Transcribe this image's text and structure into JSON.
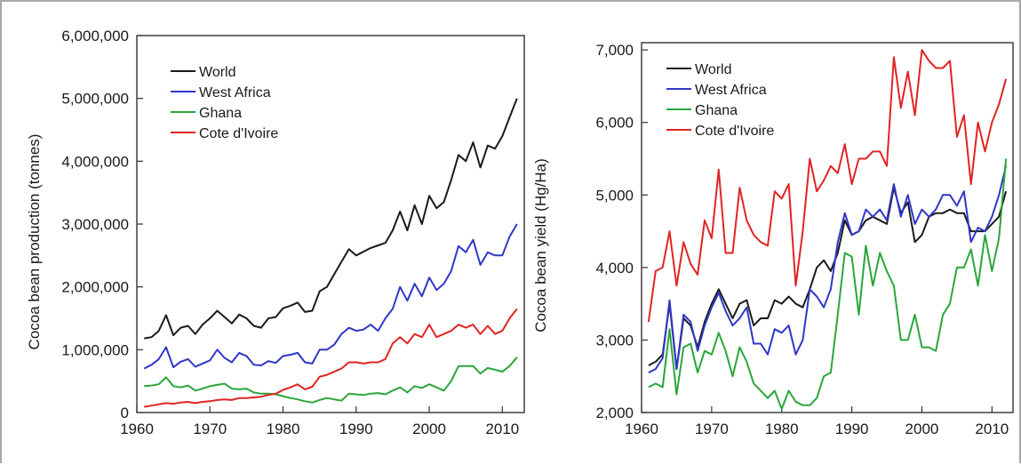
{
  "chart_data": [
    {
      "type": "line",
      "ylabel": "Cocoa bean production (tonnes)",
      "xlabel": "",
      "xlim": [
        1960,
        2013
      ],
      "ylim": [
        0,
        6000000
      ],
      "x_ticks": [
        1960,
        1970,
        1980,
        1990,
        2000,
        2010
      ],
      "x_tick_labels": [
        "1960",
        "1970",
        "1980",
        "1990",
        "2000",
        "2010"
      ],
      "y_ticks": [
        0,
        1000000,
        2000000,
        3000000,
        4000000,
        5000000,
        6000000
      ],
      "y_tick_labels": [
        "0",
        "1,000,000",
        "2,000,000",
        "3,000,000",
        "4,000,000",
        "5,000,000",
        "6,000,000"
      ],
      "legend_position": "top-left",
      "grid": false,
      "x": [
        1961,
        1962,
        1963,
        1964,
        1965,
        1966,
        1967,
        1968,
        1969,
        1970,
        1971,
        1972,
        1973,
        1974,
        1975,
        1976,
        1977,
        1978,
        1979,
        1980,
        1981,
        1982,
        1983,
        1984,
        1985,
        1986,
        1987,
        1988,
        1989,
        1990,
        1991,
        1992,
        1993,
        1994,
        1995,
        1996,
        1997,
        1998,
        1999,
        2000,
        2001,
        2002,
        2003,
        2004,
        2005,
        2006,
        2007,
        2008,
        2009,
        2010,
        2011,
        2012
      ],
      "series": [
        {
          "name": "World",
          "color": "#1a1a1a",
          "values": [
            1180000,
            1200000,
            1300000,
            1550000,
            1230000,
            1350000,
            1380000,
            1250000,
            1400000,
            1500000,
            1620000,
            1520000,
            1420000,
            1560000,
            1500000,
            1380000,
            1350000,
            1500000,
            1520000,
            1660000,
            1700000,
            1750000,
            1600000,
            1620000,
            1930000,
            2000000,
            2200000,
            2400000,
            2600000,
            2500000,
            2560000,
            2620000,
            2660000,
            2700000,
            2900000,
            3200000,
            2900000,
            3300000,
            3000000,
            3450000,
            3250000,
            3350000,
            3700000,
            4100000,
            4000000,
            4300000,
            3900000,
            4250000,
            4200000,
            4400000,
            4700000,
            5000000
          ]
        },
        {
          "name": "West Africa",
          "color": "#2f37c8",
          "values": [
            700000,
            760000,
            850000,
            1040000,
            720000,
            810000,
            850000,
            730000,
            780000,
            830000,
            1000000,
            870000,
            800000,
            950000,
            900000,
            760000,
            750000,
            820000,
            790000,
            900000,
            920000,
            950000,
            800000,
            780000,
            1000000,
            1000000,
            1080000,
            1250000,
            1350000,
            1300000,
            1320000,
            1400000,
            1300000,
            1500000,
            1650000,
            2000000,
            1780000,
            2050000,
            1850000,
            2150000,
            1950000,
            2050000,
            2250000,
            2650000,
            2550000,
            2750000,
            2350000,
            2550000,
            2500000,
            2500000,
            2800000,
            3000000
          ]
        },
        {
          "name": "Ghana",
          "color": "#2aa63a",
          "values": [
            420000,
            430000,
            450000,
            560000,
            420000,
            400000,
            430000,
            350000,
            380000,
            420000,
            440000,
            460000,
            380000,
            370000,
            380000,
            320000,
            300000,
            300000,
            290000,
            260000,
            230000,
            210000,
            180000,
            160000,
            200000,
            230000,
            210000,
            190000,
            300000,
            290000,
            280000,
            300000,
            310000,
            290000,
            350000,
            400000,
            320000,
            420000,
            390000,
            450000,
            400000,
            350000,
            500000,
            740000,
            740000,
            740000,
            620000,
            710000,
            680000,
            650000,
            740000,
            880000
          ]
        },
        {
          "name": "Cote d'Ivoire",
          "color": "#e02424",
          "values": [
            90000,
            110000,
            130000,
            150000,
            140000,
            160000,
            170000,
            150000,
            170000,
            180000,
            200000,
            210000,
            200000,
            230000,
            230000,
            240000,
            250000,
            280000,
            300000,
            360000,
            400000,
            450000,
            370000,
            410000,
            570000,
            600000,
            650000,
            700000,
            800000,
            800000,
            780000,
            800000,
            800000,
            850000,
            1100000,
            1200000,
            1100000,
            1250000,
            1200000,
            1400000,
            1200000,
            1250000,
            1300000,
            1400000,
            1350000,
            1400000,
            1250000,
            1380000,
            1250000,
            1300000,
            1500000,
            1650000
          ]
        }
      ]
    },
    {
      "type": "line",
      "ylabel": "Cocoa bean yield (Hg/Ha)",
      "xlabel": "",
      "xlim": [
        1960,
        2013
      ],
      "ylim": [
        2000,
        7100
      ],
      "x_ticks": [
        1960,
        1970,
        1980,
        1990,
        2000,
        2010
      ],
      "x_tick_labels": [
        "1960",
        "1970",
        "1980",
        "1990",
        "2000",
        "2010"
      ],
      "y_ticks": [
        2000,
        3000,
        4000,
        5000,
        6000,
        7000
      ],
      "y_tick_labels": [
        "2,000",
        "3,000",
        "4,000",
        "5,000",
        "6,000",
        "7,000"
      ],
      "legend_position": "top-left",
      "grid": false,
      "x": [
        1961,
        1962,
        1963,
        1964,
        1965,
        1966,
        1967,
        1968,
        1969,
        1970,
        1971,
        1972,
        1973,
        1974,
        1975,
        1976,
        1977,
        1978,
        1979,
        1980,
        1981,
        1982,
        1983,
        1984,
        1985,
        1986,
        1987,
        1988,
        1989,
        1990,
        1991,
        1992,
        1993,
        1994,
        1995,
        1996,
        1997,
        1998,
        1999,
        2000,
        2001,
        2002,
        2003,
        2004,
        2005,
        2006,
        2007,
        2008,
        2009,
        2010,
        2011,
        2012
      ],
      "series": [
        {
          "name": "World",
          "color": "#1a1a1a",
          "values": [
            2650,
            2700,
            2800,
            3500,
            2600,
            3300,
            3200,
            2900,
            3250,
            3500,
            3700,
            3500,
            3300,
            3500,
            3550,
            3200,
            3300,
            3300,
            3550,
            3500,
            3600,
            3500,
            3450,
            3700,
            4000,
            4100,
            3950,
            4200,
            4650,
            4450,
            4500,
            4650,
            4700,
            4650,
            4600,
            5100,
            4750,
            4900,
            4350,
            4450,
            4700,
            4750,
            4750,
            4800,
            4750,
            4750,
            4500,
            4500,
            4500,
            4600,
            4700,
            5050
          ]
        },
        {
          "name": "West Africa",
          "color": "#2f37c8",
          "values": [
            2550,
            2600,
            2750,
            3550,
            2600,
            3350,
            3250,
            2850,
            3200,
            3450,
            3650,
            3400,
            3200,
            3300,
            3450,
            2950,
            2950,
            2800,
            3150,
            3100,
            3200,
            2800,
            3000,
            3700,
            3600,
            3450,
            3700,
            4350,
            4750,
            4450,
            4500,
            4800,
            4700,
            4800,
            4650,
            5150,
            4700,
            5000,
            4600,
            4800,
            4700,
            4800,
            5000,
            5000,
            4850,
            5050,
            4350,
            4550,
            4500,
            4700,
            5000,
            5400
          ]
        },
        {
          "name": "Ghana",
          "color": "#2aa63a",
          "values": [
            2350,
            2400,
            2350,
            3150,
            2250,
            2900,
            2950,
            2550,
            2850,
            2800,
            3100,
            2850,
            2500,
            2900,
            2700,
            2400,
            2300,
            2200,
            2300,
            2050,
            2300,
            2150,
            2100,
            2100,
            2200,
            2500,
            2550,
            3350,
            4200,
            4150,
            3350,
            4300,
            3750,
            4200,
            3950,
            3750,
            3000,
            3000,
            3350,
            2900,
            2900,
            2850,
            3350,
            3500,
            4000,
            4000,
            4250,
            3750,
            4450,
            3950,
            4400,
            5500
          ]
        },
        {
          "name": "Cote d'Ivoire",
          "color": "#e02424",
          "values": [
            3250,
            3950,
            4000,
            4500,
            3750,
            4350,
            4050,
            3900,
            4650,
            4400,
            5350,
            4200,
            4200,
            5100,
            4650,
            4450,
            4350,
            4300,
            5050,
            4950,
            5150,
            3750,
            4500,
            5500,
            5050,
            5200,
            5400,
            5300,
            5700,
            5150,
            5500,
            5500,
            5600,
            5600,
            5400,
            6900,
            6200,
            6700,
            6100,
            7000,
            6850,
            6750,
            6750,
            6850,
            5800,
            6100,
            5150,
            6000,
            5600,
            6000,
            6250,
            6600
          ]
        }
      ]
    }
  ]
}
